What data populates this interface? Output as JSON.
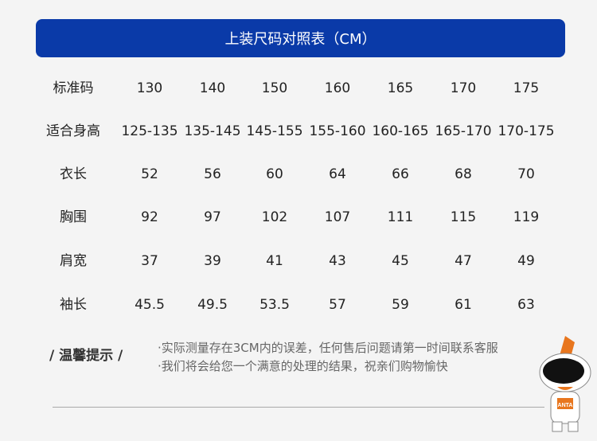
{
  "title": "上装尺码对照表（CM）",
  "table": {
    "rows": [
      {
        "label": "标准码",
        "values": [
          "130",
          "140",
          "150",
          "160",
          "165",
          "170",
          "175"
        ]
      },
      {
        "label": "适合身高",
        "values": [
          "125-135",
          "135-145",
          "145-155",
          "155-160",
          "160-165",
          "165-170",
          "170-175"
        ]
      },
      {
        "label": "衣长",
        "values": [
          "52",
          "56",
          "60",
          "64",
          "66",
          "68",
          "70"
        ]
      },
      {
        "label": "胸围",
        "values": [
          "92",
          "97",
          "102",
          "107",
          "111",
          "115",
          "119"
        ]
      },
      {
        "label": "肩宽",
        "values": [
          "37",
          "39",
          "41",
          "43",
          "45",
          "47",
          "49"
        ]
      },
      {
        "label": "袖长",
        "values": [
          "45.5",
          "49.5",
          "53.5",
          "57",
          "59",
          "61",
          "63"
        ]
      }
    ]
  },
  "tips": {
    "title": "/ 温馨提示 /",
    "lines": [
      "·实际测量存在3CM内的误差，任何售后问题请第一时间联系客服",
      "·我们将会给您一个满意的处理的结果，祝亲们购物愉快"
    ]
  },
  "mascot": {
    "badge": "ANTA"
  },
  "colors": {
    "banner": "#0a3aa8",
    "mascot_accent": "#e8761e"
  }
}
